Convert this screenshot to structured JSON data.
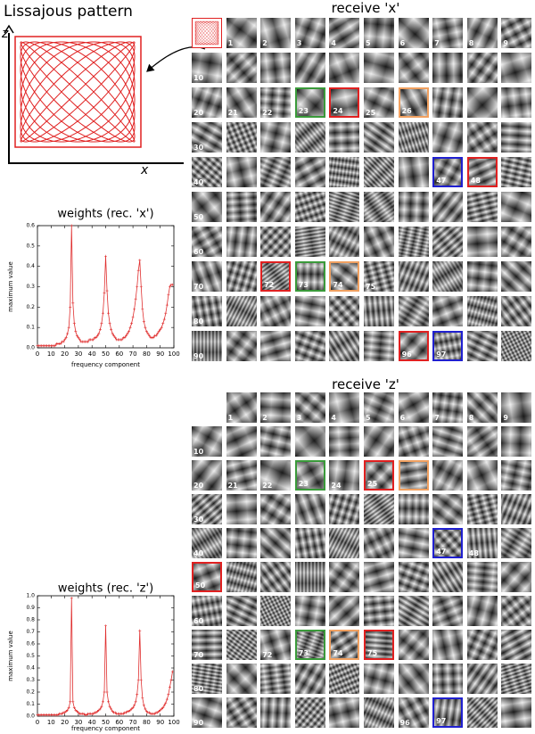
{
  "lissajous": {
    "title": "Lissajous pattern",
    "x_label": "x",
    "z_label": "z"
  },
  "grids": [
    {
      "title": "receive 'x'",
      "tile_labels": [
        null,
        1,
        2,
        3,
        4,
        5,
        6,
        7,
        8,
        9,
        10,
        null,
        null,
        null,
        null,
        null,
        null,
        null,
        null,
        null,
        20,
        21,
        22,
        23,
        24,
        25,
        26,
        null,
        null,
        null,
        30,
        null,
        null,
        null,
        null,
        null,
        null,
        null,
        null,
        null,
        40,
        null,
        null,
        null,
        null,
        null,
        null,
        47,
        48,
        null,
        50,
        null,
        null,
        null,
        null,
        null,
        null,
        null,
        null,
        null,
        60,
        null,
        null,
        null,
        null,
        null,
        null,
        null,
        null,
        null,
        70,
        null,
        72,
        73,
        74,
        75,
        null,
        null,
        null,
        null,
        80,
        null,
        null,
        null,
        null,
        null,
        null,
        null,
        null,
        null,
        90,
        null,
        null,
        null,
        null,
        null,
        96,
        97,
        null,
        null
      ],
      "frames": {
        "23": "#3a9a3a",
        "24": "#e02020",
        "26": "#f0a060",
        "47": "#2020d0",
        "48": "#e02020",
        "72": "#e02020",
        "73": "#3a9a3a",
        "74": "#f0a060",
        "96": "#e02020",
        "97": "#2020d0"
      }
    },
    {
      "title": "receive 'z'",
      "tile_labels": [
        null,
        1,
        2,
        3,
        4,
        5,
        6,
        7,
        8,
        9,
        10,
        null,
        null,
        null,
        null,
        null,
        null,
        null,
        null,
        null,
        20,
        21,
        22,
        23,
        24,
        25,
        null,
        null,
        null,
        null,
        30,
        null,
        null,
        null,
        null,
        null,
        null,
        null,
        null,
        null,
        40,
        null,
        null,
        null,
        null,
        null,
        null,
        47,
        48,
        null,
        50,
        null,
        null,
        null,
        null,
        null,
        null,
        null,
        null,
        null,
        60,
        null,
        null,
        null,
        null,
        null,
        null,
        null,
        null,
        null,
        70,
        null,
        72,
        73,
        74,
        75,
        null,
        null,
        null,
        null,
        80,
        null,
        null,
        null,
        null,
        null,
        null,
        null,
        null,
        null,
        90,
        null,
        null,
        null,
        null,
        null,
        96,
        97,
        null,
        null
      ],
      "frames": {
        "23": "#3a9a3a",
        "25": "#e02020",
        "26": "#f0a060",
        "47": "#2020d0",
        "50": "#e02020",
        "73": "#3a9a3a",
        "74": "#f0a060",
        "75": "#e02020",
        "97": "#2020d0"
      }
    }
  ],
  "chart_data": [
    {
      "type": "line",
      "title": "weights (rec. 'x')",
      "xlabel": "frequency component",
      "ylabel": "maximum value",
      "x": [
        0,
        1,
        2,
        3,
        4,
        5,
        6,
        7,
        8,
        9,
        10,
        11,
        12,
        13,
        14,
        15,
        16,
        17,
        18,
        19,
        20,
        21,
        22,
        23,
        24,
        25,
        26,
        27,
        28,
        29,
        30,
        31,
        32,
        33,
        34,
        35,
        36,
        37,
        38,
        39,
        40,
        41,
        42,
        43,
        44,
        45,
        46,
        47,
        48,
        49,
        50,
        51,
        52,
        53,
        54,
        55,
        56,
        57,
        58,
        59,
        60,
        61,
        62,
        63,
        64,
        65,
        66,
        67,
        68,
        69,
        70,
        71,
        72,
        73,
        74,
        75,
        76,
        77,
        78,
        79,
        80,
        81,
        82,
        83,
        84,
        85,
        86,
        87,
        88,
        89,
        90,
        91,
        92,
        93,
        94,
        95,
        96,
        97,
        98,
        99
      ],
      "values": [
        0.01,
        0.01,
        0.01,
        0.01,
        0.01,
        0.01,
        0.01,
        0.01,
        0.01,
        0.01,
        0.01,
        0.01,
        0.01,
        0.01,
        0.02,
        0.02,
        0.02,
        0.02,
        0.03,
        0.03,
        0.04,
        0.05,
        0.07,
        0.1,
        0.2,
        0.6,
        0.22,
        0.12,
        0.08,
        0.06,
        0.05,
        0.04,
        0.03,
        0.03,
        0.03,
        0.03,
        0.03,
        0.03,
        0.04,
        0.04,
        0.04,
        0.04,
        0.05,
        0.05,
        0.06,
        0.07,
        0.09,
        0.12,
        0.17,
        0.27,
        0.45,
        0.28,
        0.17,
        0.12,
        0.09,
        0.07,
        0.06,
        0.05,
        0.04,
        0.04,
        0.04,
        0.04,
        0.04,
        0.05,
        0.05,
        0.06,
        0.07,
        0.08,
        0.1,
        0.12,
        0.15,
        0.19,
        0.24,
        0.3,
        0.38,
        0.43,
        0.3,
        0.19,
        0.13,
        0.1,
        0.08,
        0.07,
        0.06,
        0.05,
        0.05,
        0.05,
        0.06,
        0.06,
        0.07,
        0.08,
        0.09,
        0.1,
        0.12,
        0.14,
        0.17,
        0.21,
        0.26,
        0.3,
        0.31,
        0.31
      ],
      "color": "#e03030",
      "xlim": [
        0,
        100
      ],
      "ylim": [
        0,
        0.6
      ],
      "xticks": [
        0,
        10,
        20,
        30,
        40,
        50,
        60,
        70,
        80,
        90,
        100
      ],
      "yticks": [
        {
          "value": 0,
          "label": "0.0"
        },
        0.1,
        0.2,
        0.3,
        0.4,
        0.5,
        0.6
      ]
    },
    {
      "type": "line",
      "title": "weights (rec. 'z')",
      "xlabel": "frequency component",
      "ylabel": "maximum value",
      "x": [
        0,
        1,
        2,
        3,
        4,
        5,
        6,
        7,
        8,
        9,
        10,
        11,
        12,
        13,
        14,
        15,
        16,
        17,
        18,
        19,
        20,
        21,
        22,
        23,
        24,
        25,
        26,
        27,
        28,
        29,
        30,
        31,
        32,
        33,
        34,
        35,
        36,
        37,
        38,
        39,
        40,
        41,
        42,
        43,
        44,
        45,
        46,
        47,
        48,
        49,
        50,
        51,
        52,
        53,
        54,
        55,
        56,
        57,
        58,
        59,
        60,
        61,
        62,
        63,
        64,
        65,
        66,
        67,
        68,
        69,
        70,
        71,
        72,
        73,
        74,
        75,
        76,
        77,
        78,
        79,
        80,
        81,
        82,
        83,
        84,
        85,
        86,
        87,
        88,
        89,
        90,
        91,
        92,
        93,
        94,
        95,
        96,
        97,
        98,
        99
      ],
      "values": [
        0.01,
        0.01,
        0.01,
        0.01,
        0.01,
        0.01,
        0.01,
        0.01,
        0.01,
        0.01,
        0.01,
        0.01,
        0.01,
        0.01,
        0.01,
        0.01,
        0.02,
        0.02,
        0.02,
        0.03,
        0.03,
        0.04,
        0.05,
        0.07,
        0.12,
        0.98,
        0.12,
        0.07,
        0.05,
        0.04,
        0.03,
        0.02,
        0.02,
        0.02,
        0.02,
        0.01,
        0.01,
        0.02,
        0.02,
        0.02,
        0.02,
        0.02,
        0.03,
        0.03,
        0.04,
        0.05,
        0.06,
        0.08,
        0.12,
        0.2,
        0.75,
        0.2,
        0.12,
        0.08,
        0.06,
        0.04,
        0.03,
        0.03,
        0.02,
        0.02,
        0.02,
        0.02,
        0.02,
        0.02,
        0.03,
        0.03,
        0.04,
        0.04,
        0.05,
        0.06,
        0.07,
        0.09,
        0.12,
        0.18,
        0.3,
        0.71,
        0.3,
        0.15,
        0.09,
        0.06,
        0.04,
        0.03,
        0.03,
        0.02,
        0.02,
        0.02,
        0.02,
        0.03,
        0.03,
        0.04,
        0.05,
        0.06,
        0.07,
        0.09,
        0.11,
        0.14,
        0.18,
        0.24,
        0.3,
        0.37
      ],
      "color": "#e03030",
      "xlim": [
        0,
        100
      ],
      "ylim": [
        0,
        1
      ],
      "xticks": [
        0,
        10,
        20,
        30,
        40,
        50,
        60,
        70,
        80,
        90,
        100
      ],
      "yticks": [
        {
          "value": 0,
          "label": "0.0"
        },
        0.1,
        0.2,
        0.3,
        0.4,
        0.5,
        0.6,
        0.7,
        0.8,
        0.9,
        {
          "value": 1,
          "label": "1.0"
        }
      ]
    }
  ]
}
